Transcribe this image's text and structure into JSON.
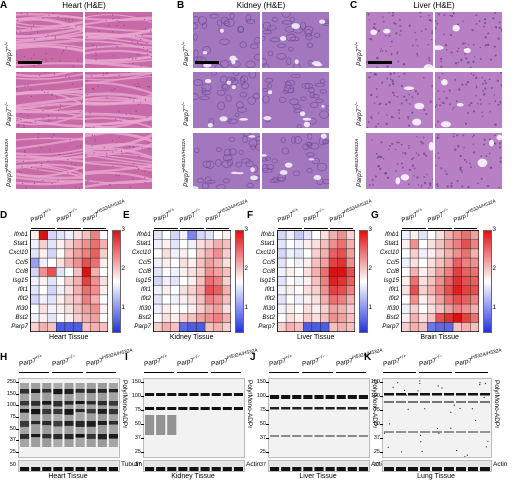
{
  "panels": {
    "A": {
      "letter": "A",
      "title": "Heart (H&E)"
    },
    "B": {
      "letter": "B",
      "title": "Kidney (H&E)"
    },
    "C": {
      "letter": "C",
      "title": "Liver (H&E)"
    }
  },
  "histology_rows": [
    "Parp7+/+",
    "Parp7−/−",
    "Parp7H532A/H532A"
  ],
  "heatmap": {
    "genes": [
      "Ifnb1",
      "Stat1",
      "Cxcl10",
      "Ccl5",
      "Ccl8",
      "Isg15",
      "Ifit1",
      "Ifit2",
      "Ifi30",
      "Bst2",
      "Parp7"
    ],
    "genotypes": [
      "Parp7+/+",
      "Parp7−/−",
      "Parp7H532A/H532A"
    ],
    "colorbar_ticks": [
      "3",
      "2",
      "1"
    ],
    "colors": {
      "low": "#2233dd",
      "mid": "#ffffff",
      "high": "#dd1111"
    },
    "panels": [
      {
        "letter": "D",
        "tissue": "Heart Tissue",
        "values": [
          [
            1.6,
            3.0,
            1.2,
            1.3,
            1.4,
            1.7,
            1.9,
            2.3,
            1.5
          ],
          [
            1.4,
            1.8,
            1.3,
            1.6,
            1.8,
            2.0,
            2.2,
            2.4,
            2.0
          ],
          [
            1.3,
            1.6,
            1.2,
            1.5,
            1.9,
            2.1,
            2.3,
            2.5,
            1.8
          ],
          [
            0.8,
            1.4,
            1.5,
            1.7,
            2.0,
            2.2,
            2.6,
            2.4,
            1.6
          ],
          [
            1.2,
            2.2,
            2.6,
            1.3,
            1.5,
            1.9,
            3.0,
            2.0,
            1.5
          ],
          [
            1.4,
            1.6,
            1.3,
            1.5,
            1.8,
            2.0,
            2.7,
            2.2,
            1.7
          ],
          [
            1.3,
            1.5,
            1.2,
            1.4,
            1.7,
            2.0,
            2.4,
            2.2,
            1.6
          ],
          [
            1.2,
            1.4,
            1.3,
            1.6,
            1.8,
            1.9,
            2.3,
            2.0,
            1.5
          ],
          [
            1.5,
            1.7,
            1.4,
            1.6,
            1.7,
            1.9,
            2.1,
            2.2,
            1.6
          ],
          [
            1.4,
            1.6,
            1.3,
            1.5,
            1.6,
            1.8,
            2.0,
            2.1,
            1.5
          ],
          [
            1.8,
            2.0,
            1.9,
            0.3,
            0.3,
            0.3,
            1.9,
            2.0,
            1.9
          ]
        ]
      },
      {
        "letter": "E",
        "tissue": "Kidney Tissue",
        "values": [
          [
            1.3,
            1.5,
            1.2,
            1.4,
            0.6,
            1.2,
            1.3,
            1.5,
            1.6
          ],
          [
            1.4,
            1.6,
            1.3,
            1.5,
            1.4,
            1.7,
            1.8,
            2.0,
            1.9
          ],
          [
            1.5,
            1.7,
            1.4,
            1.6,
            1.5,
            1.8,
            2.0,
            2.2,
            1.8
          ],
          [
            1.4,
            1.6,
            1.5,
            1.7,
            1.6,
            1.9,
            2.1,
            2.0,
            1.7
          ],
          [
            1.3,
            1.5,
            1.4,
            1.6,
            1.7,
            1.8,
            2.2,
            2.1,
            1.9
          ],
          [
            1.2,
            1.4,
            1.3,
            1.5,
            1.6,
            1.9,
            2.4,
            2.3,
            1.8
          ],
          [
            1.4,
            1.6,
            1.5,
            1.7,
            1.8,
            2.0,
            2.6,
            2.5,
            2.0
          ],
          [
            1.3,
            1.5,
            1.4,
            1.6,
            1.7,
            1.9,
            2.3,
            2.2,
            1.9
          ],
          [
            1.4,
            1.6,
            1.5,
            1.5,
            1.6,
            1.8,
            2.0,
            2.1,
            1.7
          ],
          [
            1.5,
            1.7,
            1.6,
            1.8,
            1.9,
            2.1,
            2.2,
            2.3,
            2.0
          ],
          [
            1.8,
            2.0,
            1.9,
            0.4,
            0.3,
            0.3,
            1.9,
            2.0,
            1.8
          ]
        ]
      },
      {
        "letter": "F",
        "tissue": "Liver Tissue",
        "values": [
          [
            1.2,
            1.4,
            1.1,
            1.3,
            1.5,
            1.7,
            2.0,
            2.2,
            1.8
          ],
          [
            1.3,
            1.5,
            1.4,
            1.6,
            1.7,
            1.9,
            2.2,
            2.4,
            2.0
          ],
          [
            1.2,
            1.4,
            1.3,
            1.5,
            1.8,
            2.0,
            2.5,
            2.6,
            2.1
          ],
          [
            1.3,
            1.5,
            1.4,
            1.6,
            1.9,
            2.1,
            2.7,
            2.8,
            2.2
          ],
          [
            1.4,
            1.6,
            1.5,
            1.7,
            2.0,
            2.4,
            3.0,
            3.0,
            2.6
          ],
          [
            1.3,
            1.5,
            1.4,
            1.6,
            1.9,
            2.3,
            2.9,
            2.8,
            2.5
          ],
          [
            1.4,
            1.6,
            1.5,
            1.7,
            1.8,
            2.2,
            2.7,
            2.6,
            2.3
          ],
          [
            1.3,
            1.5,
            1.4,
            1.6,
            1.7,
            2.0,
            2.4,
            2.3,
            2.0
          ],
          [
            1.4,
            1.6,
            1.5,
            1.7,
            1.6,
            1.8,
            2.1,
            2.0,
            1.8
          ],
          [
            1.5,
            1.7,
            1.6,
            1.8,
            1.7,
            1.9,
            2.2,
            2.1,
            1.9
          ],
          [
            1.8,
            2.0,
            1.9,
            0.3,
            0.3,
            0.3,
            1.9,
            2.0,
            1.9
          ]
        ]
      },
      {
        "letter": "G",
        "tissue": "Brain Tissue",
        "values": [
          [
            1.4,
            1.6,
            1.3,
            1.5,
            1.7,
            2.0,
            2.2,
            2.4,
            2.1
          ],
          [
            1.6,
            2.2,
            1.5,
            1.7,
            1.9,
            2.1,
            2.3,
            2.6,
            2.3
          ],
          [
            1.5,
            1.8,
            1.4,
            1.6,
            1.8,
            2.0,
            2.2,
            2.4,
            2.0
          ],
          [
            1.4,
            1.7,
            1.5,
            1.7,
            1.9,
            2.1,
            2.5,
            2.3,
            2.2
          ],
          [
            1.5,
            2.0,
            1.6,
            1.8,
            2.1,
            2.3,
            2.7,
            2.5,
            2.4
          ],
          [
            1.6,
            2.4,
            1.7,
            1.9,
            2.2,
            2.5,
            2.8,
            2.6,
            2.5
          ],
          [
            1.7,
            2.6,
            1.8,
            2.0,
            2.3,
            2.6,
            2.9,
            2.7,
            2.6
          ],
          [
            1.5,
            2.2,
            1.6,
            1.8,
            2.1,
            2.4,
            2.6,
            2.5,
            2.3
          ],
          [
            1.4,
            1.8,
            1.5,
            1.7,
            1.9,
            2.1,
            2.3,
            2.2,
            2.0
          ],
          [
            1.6,
            2.0,
            1.7,
            1.9,
            2.6,
            2.8,
            3.0,
            2.7,
            2.4
          ],
          [
            1.8,
            2.0,
            1.9,
            0.5,
            0.4,
            0.4,
            1.9,
            2.0,
            1.9
          ]
        ]
      }
    ]
  },
  "western": {
    "side_label": "Poly/Mono-ADPr",
    "panels": [
      {
        "letter": "H",
        "tissue": "Heart Tissue",
        "loading": "Tubulin",
        "genotypes": [
          "Parp7+/+",
          "Parp7−/−",
          "Parp7H532A/H532A"
        ],
        "mw": [
          "250",
          "150",
          "100",
          "75",
          "50",
          "37",
          "25"
        ]
      },
      {
        "letter": "I",
        "tissue": "Kidney Tissue",
        "loading": "Actin",
        "genotypes": [
          "Parp7+/+",
          "Parp7−/−",
          "Parp7H532A/H532A"
        ],
        "mw": [
          "150",
          "100",
          "75",
          "50",
          "37",
          "25"
        ]
      },
      {
        "letter": "J",
        "tissue": "Liver Tissue",
        "loading": "Actin",
        "genotypes": [
          "Parp7+/+",
          "Parp7−/−",
          "Parp7H532A/H532A"
        ],
        "mw": [
          "150",
          "100",
          "75",
          "50",
          "37",
          "25"
        ]
      },
      {
        "letter": "K",
        "tissue": "Lung Tissue",
        "loading": "Actin",
        "genotypes": [
          "Parp7+/+",
          "Parp7−/−",
          "Parp7H532A/H532A"
        ],
        "mw": [
          "150",
          "100",
          "75",
          "50",
          "37",
          "25"
        ]
      }
    ]
  }
}
